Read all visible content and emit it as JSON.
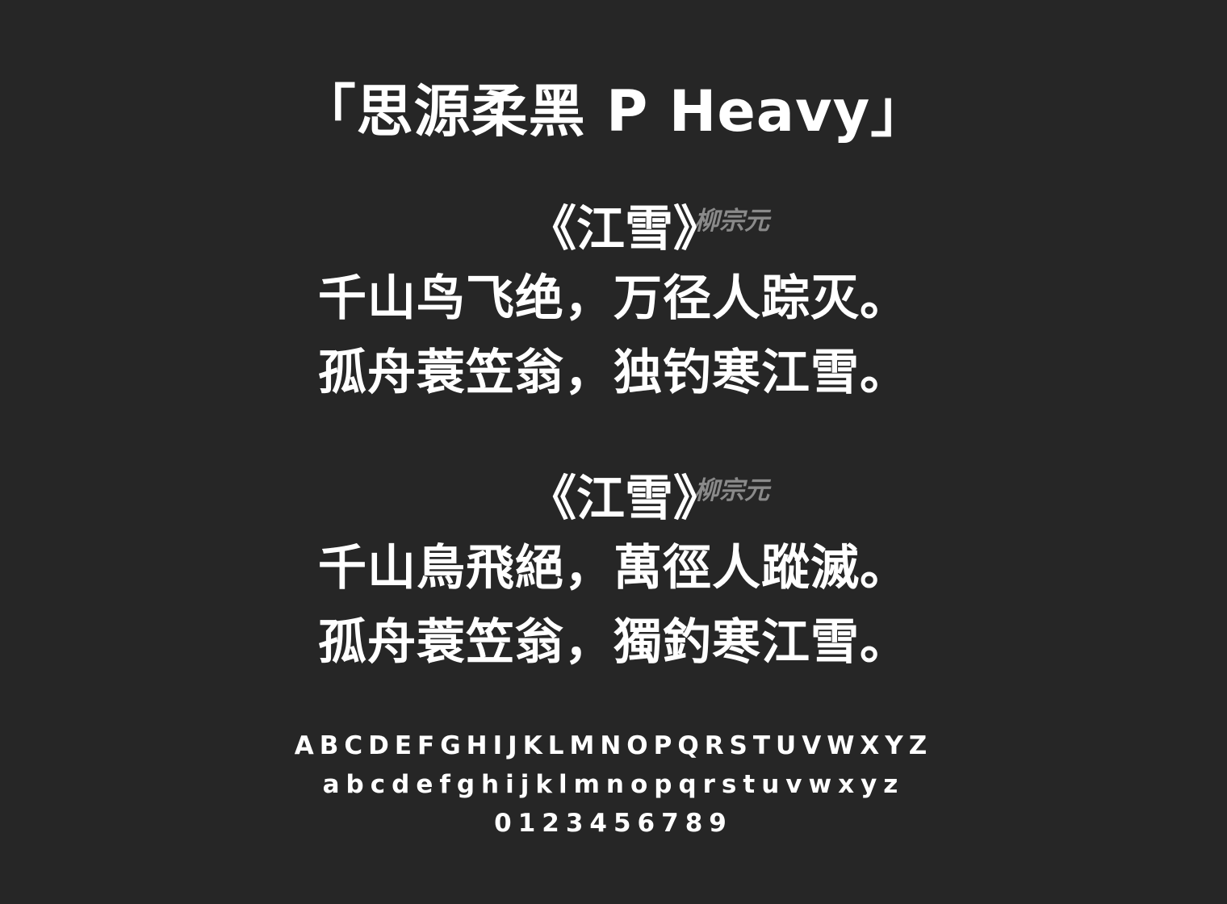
{
  "title": "「思源柔黑 P Heavy」",
  "poems": [
    {
      "title": "《江雪》",
      "author": "柳宗元",
      "lines": [
        "千山鸟飞绝，万径人踪灭。",
        "孤舟蓑笠翁，独钓寒江雪。"
      ]
    },
    {
      "title": "《江雪》",
      "author": "柳宗元",
      "lines": [
        "千山鳥飛絕，萬徑人蹤滅。",
        "孤舟蓑笠翁，獨釣寒江雪。"
      ]
    }
  ],
  "alphabet": {
    "upper": "ABCDEFGHIJKLMNOPQRSTUVWXYZ",
    "lower": "abcdefghijklmnopqrstuvwxyz",
    "digits": "0123456789"
  },
  "colors": {
    "background": "#262626",
    "text": "#ffffff",
    "author": "#8a8a8a"
  }
}
